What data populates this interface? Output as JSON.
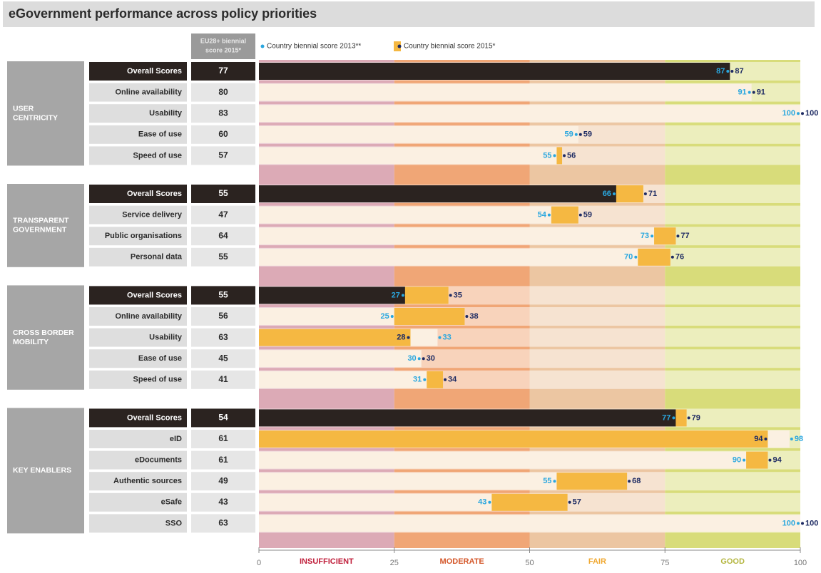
{
  "chart_data": {
    "type": "bar",
    "title": "eGovernment performance across policy priorities",
    "eu_header": [
      "EU28+ biennial",
      "score 2015*"
    ],
    "series": [
      {
        "name": "Country biennial score 2013**",
        "color": "#2aa7df",
        "bar_color": "#fbf0e2"
      },
      {
        "name": "Country biennial score 2015*",
        "color": "#1e2b63",
        "bar_color": "#f5b842"
      }
    ],
    "overall_color": "#2b2320",
    "xlim": [
      0,
      100
    ],
    "xticks": [
      0,
      25,
      50,
      75,
      100
    ],
    "bands": [
      {
        "label": "INSUFFICIENT",
        "color": "#dcaab6",
        "label_color": "#c0203c"
      },
      {
        "label": "MODERATE",
        "color": "#f0a676",
        "label_color": "#d4572a"
      },
      {
        "label": "FAIR",
        "color": "#ecc6a2",
        "label_color": "#f0a830"
      },
      {
        "label": "GOOD",
        "color": "#d8dc7a",
        "label_color": "#b4b640"
      }
    ],
    "groups": [
      {
        "name": [
          "USER",
          "CENTRICITY"
        ],
        "categories": [
          "Overall Scores",
          "Online availability",
          "Usability",
          "Ease of use",
          "Speed of use"
        ],
        "eu": [
          77,
          80,
          83,
          60,
          57
        ],
        "series": [
          {
            "values": [
              87,
              91,
              100,
              59,
              55
            ]
          },
          {
            "values": [
              87,
              91,
              100,
              59,
              56
            ]
          }
        ]
      },
      {
        "name": [
          "TRANSPARENT",
          "GOVERNMENT"
        ],
        "categories": [
          "Overall Scores",
          "Service delivery",
          "Public organisations",
          "Personal data"
        ],
        "eu": [
          55,
          47,
          64,
          55
        ],
        "series": [
          {
            "values": [
              66,
              54,
              73,
              70
            ]
          },
          {
            "values": [
              71,
              59,
              77,
              76
            ]
          }
        ]
      },
      {
        "name": [
          "CROSS BORDER",
          "MOBILITY"
        ],
        "categories": [
          "Overall Scores",
          "Online availability",
          "Usability",
          "Ease of use",
          "Speed of use"
        ],
        "eu": [
          55,
          56,
          63,
          45,
          41
        ],
        "series": [
          {
            "values": [
              27,
              25,
              33,
              30,
              31
            ]
          },
          {
            "values": [
              35,
              38,
              28,
              30,
              34
            ]
          }
        ]
      },
      {
        "name": [
          "KEY ENABLERS"
        ],
        "categories": [
          "Overall Scores",
          "eID",
          "eDocuments",
          "Authentic sources",
          "eSafe",
          "SSO"
        ],
        "eu": [
          54,
          61,
          61,
          49,
          43,
          63
        ],
        "series": [
          {
            "values": [
              77,
              98,
              90,
              55,
              43,
              100
            ]
          },
          {
            "values": [
              79,
              94,
              94,
              68,
              57,
              100
            ]
          }
        ]
      }
    ]
  }
}
